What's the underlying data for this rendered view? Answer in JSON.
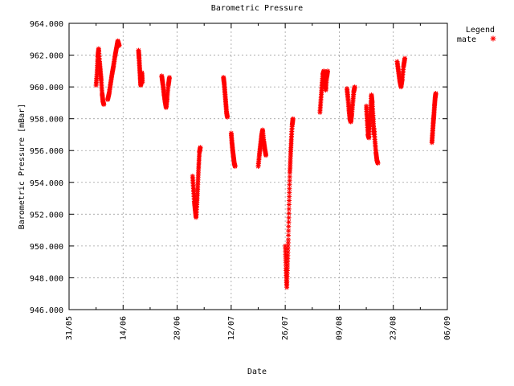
{
  "chart_data": {
    "type": "scatter",
    "title": "Barometric Pressure",
    "xlabel": "Date",
    "ylabel": "Barometric Pressure [mBar]",
    "legend_title": "Legend",
    "legend_position": "top-right",
    "grid": true,
    "ylim": [
      946.0,
      964.0
    ],
    "yticks": [
      "946.000",
      "948.000",
      "950.000",
      "952.000",
      "954.000",
      "956.000",
      "958.000",
      "960.000",
      "962.000",
      "964.000"
    ],
    "xlim": [
      "31/05",
      "06/09"
    ],
    "xticks": [
      "31/05",
      "14/06",
      "28/06",
      "12/07",
      "26/07",
      "09/08",
      "23/08",
      "06/09"
    ],
    "series": [
      {
        "name": "mate",
        "color": "#ff0000",
        "marker": "asterisk",
        "segments": [
          {
            "start": "07/06",
            "end": "09/06",
            "values": [
              960.1,
              960.8,
              961.9,
              962.4,
              961.6,
              961.0,
              960.4,
              959.6,
              959.1,
              958.9
            ]
          },
          {
            "start": "10/06",
            "end": "13/06",
            "values": [
              959.2,
              959.6,
              960.2,
              960.8,
              961.3,
              961.9,
              962.4,
              962.9,
              962.6
            ]
          },
          {
            "start": "18/06",
            "end": "19/06",
            "values": [
              962.3,
              961.8,
              961.2,
              960.6,
              960.1,
              960.4,
              960.9,
              960.3
            ]
          },
          {
            "start": "24/06",
            "end": "26/06",
            "values": [
              960.7,
              960.2,
              959.6,
              959.1,
              958.7,
              959.3,
              960.1,
              960.6
            ]
          },
          {
            "start": "02/07",
            "end": "04/07",
            "values": [
              954.4,
              953.6,
              952.8,
              952.3,
              951.8,
              952.6,
              953.7,
              954.9,
              955.9,
              956.2
            ]
          },
          {
            "start": "10/07",
            "end": "11/07",
            "values": [
              960.6,
              960.2,
              959.6,
              959.0,
              958.4,
              958.1
            ]
          },
          {
            "start": "12/07",
            "end": "13/07",
            "values": [
              957.1,
              956.5,
              956.0,
              955.6,
              955.2,
              955.0
            ]
          },
          {
            "start": "19/07",
            "end": "21/07",
            "values": [
              955.0,
              955.7,
              956.3,
              956.9,
              957.3,
              956.6,
              956.1,
              955.7
            ]
          },
          {
            "start": "26/07",
            "end": "28/07",
            "values": [
              950.0,
              948.6,
              947.4,
              948.8,
              950.4,
              952.6,
              954.6,
              955.8,
              956.8,
              957.6,
              958.0
            ]
          },
          {
            "start": "04/08",
            "end": "06/08",
            "values": [
              958.4,
              959.2,
              960.1,
              960.8,
              961.0,
              960.4,
              959.8,
              960.6,
              961.0
            ]
          },
          {
            "start": "11/08",
            "end": "13/08",
            "values": [
              959.9,
              959.3,
              958.6,
              958.0,
              957.8,
              958.3,
              959.0,
              959.7,
              960.0
            ]
          },
          {
            "start": "16/08",
            "end": "18/08",
            "values": [
              958.8,
              957.9,
              957.0,
              956.8,
              957.6,
              958.6,
              959.5,
              959.0,
              958.1,
              957.0
            ]
          },
          {
            "start": "18/08",
            "end": "19/08",
            "values": [
              957.4,
              956.6,
              955.9,
              955.4,
              955.2
            ]
          },
          {
            "start": "24/08",
            "end": "26/08",
            "values": [
              961.6,
              961.0,
              960.4,
              960.0,
              960.5,
              961.3,
              961.8
            ]
          },
          {
            "start": "02/09",
            "end": "03/09",
            "values": [
              956.5,
              957.1,
              957.7,
              958.2,
              958.8,
              959.3,
              959.6
            ]
          }
        ]
      }
    ]
  }
}
